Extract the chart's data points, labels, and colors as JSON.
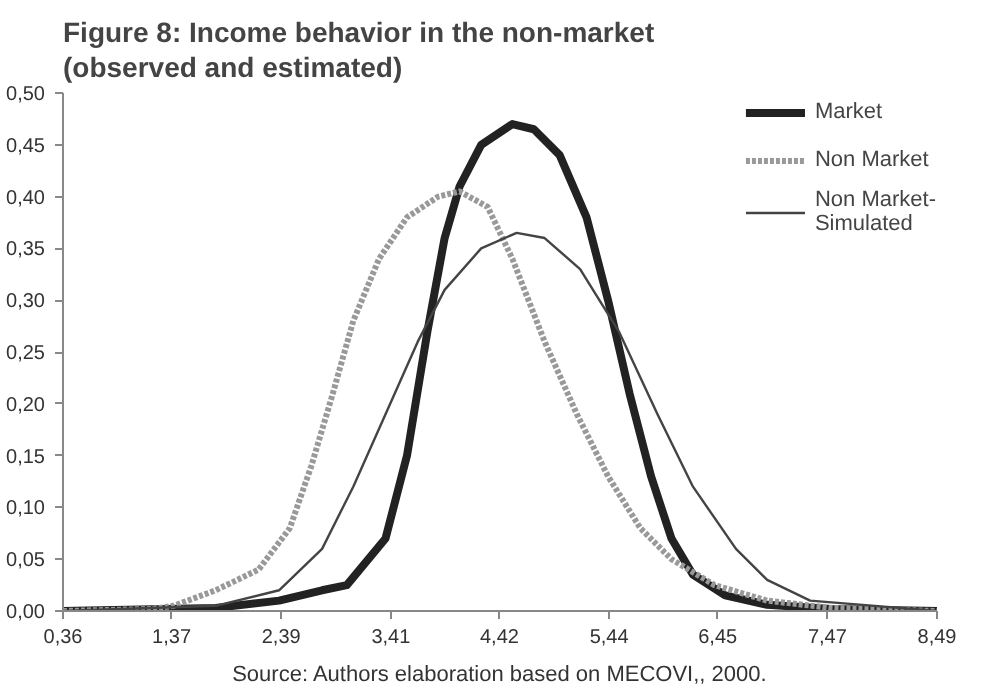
{
  "chart_data": {
    "type": "line",
    "title": "Figure 8: Income behavior in the non-market\n(observed and estimated)",
    "xlim": [
      0.36,
      8.49
    ],
    "ylim": [
      0,
      0.5
    ],
    "xticks": [
      {
        "value": 0.36,
        "label": "0,36"
      },
      {
        "value": 1.37,
        "label": "1,37"
      },
      {
        "value": 2.39,
        "label": "2,39"
      },
      {
        "value": 3.41,
        "label": "3,41"
      },
      {
        "value": 4.42,
        "label": "4,42"
      },
      {
        "value": 5.44,
        "label": "5,44"
      },
      {
        "value": 6.45,
        "label": "6,45"
      },
      {
        "value": 7.47,
        "label": "7,47"
      },
      {
        "value": 8.49,
        "label": "8,49"
      }
    ],
    "yticks": [
      {
        "value": 0,
        "label": "0,00"
      },
      {
        "value": 0.05,
        "label": "0,05"
      },
      {
        "value": 0.1,
        "label": "0,10"
      },
      {
        "value": 0.15,
        "label": "0,15"
      },
      {
        "value": 0.2,
        "label": "0,20"
      },
      {
        "value": 0.25,
        "label": "0,25"
      },
      {
        "value": 0.3,
        "label": "0,30"
      },
      {
        "value": 0.35,
        "label": "0,35"
      },
      {
        "value": 0.4,
        "label": "0,40"
      },
      {
        "value": 0.45,
        "label": "0,45"
      },
      {
        "value": 0.5,
        "label": "0,50"
      }
    ],
    "grid": false,
    "legend": "top right",
    "marker": "none",
    "series": [
      {
        "name": "Market",
        "color": "#222222",
        "line_style": "solid",
        "x": [
          0.36,
          1.78,
          2.37,
          2.77,
          3.0,
          3.36,
          3.56,
          3.75,
          3.91,
          4.05,
          4.25,
          4.54,
          4.74,
          4.98,
          5.23,
          5.43,
          5.63,
          5.83,
          6.02,
          6.22,
          6.52,
          6.91,
          7.5,
          8.49
        ],
        "values": [
          0.0,
          0.003,
          0.01,
          0.02,
          0.025,
          0.07,
          0.15,
          0.27,
          0.36,
          0.41,
          0.45,
          0.47,
          0.465,
          0.44,
          0.38,
          0.3,
          0.21,
          0.13,
          0.07,
          0.035,
          0.015,
          0.006,
          0.002,
          0.0
        ]
      },
      {
        "name": "Non Market",
        "color": "#999999",
        "line_style": "dotted",
        "x": [
          0.36,
          1.19,
          1.39,
          1.78,
          2.18,
          2.47,
          2.67,
          2.87,
          3.06,
          3.3,
          3.56,
          3.85,
          4.05,
          4.31,
          4.54,
          4.84,
          5.14,
          5.43,
          5.73,
          6.02,
          6.42,
          6.91,
          7.5,
          8.49
        ],
        "values": [
          0.0,
          0.002,
          0.005,
          0.02,
          0.04,
          0.08,
          0.14,
          0.21,
          0.28,
          0.34,
          0.38,
          0.4,
          0.405,
          0.39,
          0.34,
          0.26,
          0.19,
          0.13,
          0.08,
          0.05,
          0.025,
          0.01,
          0.003,
          0.0
        ]
      },
      {
        "name": "Non Market-\nSimulated",
        "color": "#444444",
        "line_style": "solid",
        "x": [
          0.36,
          1.78,
          2.37,
          2.77,
          3.06,
          3.36,
          3.66,
          3.91,
          4.25,
          4.58,
          4.84,
          5.17,
          5.53,
          5.89,
          6.22,
          6.62,
          6.91,
          7.31,
          8.49
        ],
        "values": [
          0.0,
          0.005,
          0.02,
          0.06,
          0.12,
          0.19,
          0.26,
          0.31,
          0.35,
          0.365,
          0.36,
          0.33,
          0.27,
          0.19,
          0.12,
          0.06,
          0.03,
          0.01,
          0.0
        ]
      }
    ],
    "annotations": [
      "Source: Authors elaboration based on MECOVI,, 2000."
    ]
  }
}
